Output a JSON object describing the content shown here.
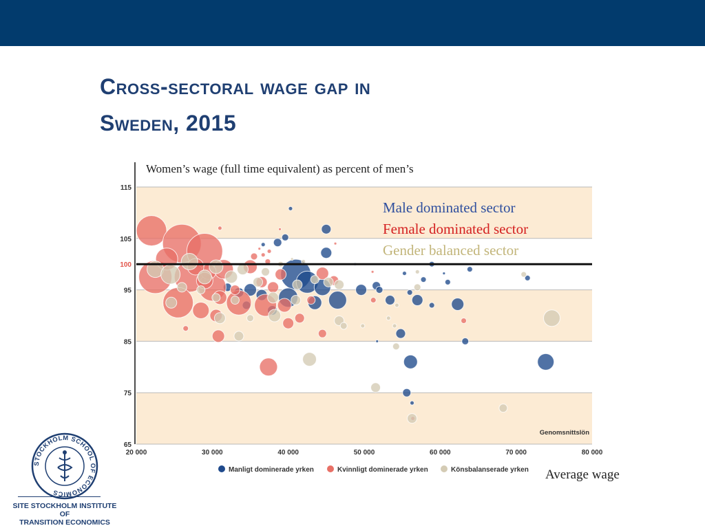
{
  "slide": {
    "title_line1": "Cross-sectoral wage gap in",
    "title_line2": "Sweden, 2015",
    "subtitle": "Women’s wage (full time equivalent) as percent of men’s",
    "legend": [
      {
        "label": "Male dominated sector",
        "color": "#2f4f9e"
      },
      {
        "label": "Female dominated sector",
        "color": "#d42020"
      },
      {
        "label": "Gender balanced sector",
        "color": "#c2b57a"
      }
    ],
    "x_axis_caption": "Average wage",
    "logo_text": "STOCKHOLM SCHOOL OF ECONOMICS",
    "institute_line1": "SITE STOCKHOLM INSTITUTE OF",
    "institute_line2": "TRANSITION ECONOMICS"
  },
  "chart_data": {
    "type": "scatter",
    "title": "",
    "xlabel": "",
    "ylabel": "",
    "xlim": [
      20000,
      80000
    ],
    "ylim": [
      65,
      115
    ],
    "x_ticks": [
      "20 000",
      "30 000",
      "40 000",
      "50 000",
      "60 000",
      "70 000",
      "80 000"
    ],
    "y_ticks": [
      "115",
      "105",
      "100",
      "95",
      "85",
      "75",
      "65"
    ],
    "y_tick_values": [
      115,
      105,
      100,
      95,
      85,
      75,
      65
    ],
    "reference_line": {
      "y": 100,
      "label": "100"
    },
    "average_label": "Genomsnittslön",
    "bands": [
      [
        65,
        75
      ],
      [
        85,
        95
      ],
      [
        105,
        115
      ]
    ],
    "band_color": "#fcebd4",
    "legend_entries": [
      {
        "label": "Manligt dominerade yrken",
        "color": "#1f4a8c"
      },
      {
        "label": "Kvinnligt dominerade yrken",
        "color": "#e87066"
      },
      {
        "label": "Könsbalanserade yrken",
        "color": "#d4cbb4"
      }
    ],
    "series": [
      {
        "name": "Manligt dominerade yrken",
        "color": "#1f4a8c",
        "points": [
          {
            "x": 40300,
            "y": 110.8,
            "r": 3
          },
          {
            "x": 45000,
            "y": 106.8,
            "r": 7
          },
          {
            "x": 38600,
            "y": 104.2,
            "r": 6
          },
          {
            "x": 39600,
            "y": 105.2,
            "r": 5
          },
          {
            "x": 36700,
            "y": 103.8,
            "r": 3
          },
          {
            "x": 45000,
            "y": 102.2,
            "r": 8
          },
          {
            "x": 48800,
            "y": 100.0,
            "r": 2
          },
          {
            "x": 41000,
            "y": 98.0,
            "r": 22
          },
          {
            "x": 42500,
            "y": 96.5,
            "r": 16
          },
          {
            "x": 44500,
            "y": 95.5,
            "r": 12
          },
          {
            "x": 46500,
            "y": 93.0,
            "r": 13
          },
          {
            "x": 40000,
            "y": 93.5,
            "r": 14
          },
          {
            "x": 43500,
            "y": 92.5,
            "r": 10
          },
          {
            "x": 35000,
            "y": 95.0,
            "r": 9
          },
          {
            "x": 36500,
            "y": 94.0,
            "r": 8
          },
          {
            "x": 33500,
            "y": 94.5,
            "r": 7
          },
          {
            "x": 34500,
            "y": 92.0,
            "r": 6
          },
          {
            "x": 49600,
            "y": 95.0,
            "r": 8
          },
          {
            "x": 51600,
            "y": 95.8,
            "r": 6
          },
          {
            "x": 52000,
            "y": 95.0,
            "r": 5
          },
          {
            "x": 53400,
            "y": 93.0,
            "r": 7
          },
          {
            "x": 56000,
            "y": 94.5,
            "r": 4
          },
          {
            "x": 57000,
            "y": 93.0,
            "r": 8
          },
          {
            "x": 57800,
            "y": 97.0,
            "r": 4
          },
          {
            "x": 58900,
            "y": 92.0,
            "r": 4
          },
          {
            "x": 61000,
            "y": 96.5,
            "r": 4
          },
          {
            "x": 62300,
            "y": 92.2,
            "r": 9
          },
          {
            "x": 60500,
            "y": 98.2,
            "r": 2
          },
          {
            "x": 63900,
            "y": 99.0,
            "r": 4
          },
          {
            "x": 55300,
            "y": 98.2,
            "r": 3
          },
          {
            "x": 58900,
            "y": 100.0,
            "r": 4
          },
          {
            "x": 71500,
            "y": 97.3,
            "r": 4
          },
          {
            "x": 54800,
            "y": 86.5,
            "r": 7
          },
          {
            "x": 56100,
            "y": 81.0,
            "r": 10
          },
          {
            "x": 55600,
            "y": 75.0,
            "r": 6
          },
          {
            "x": 56300,
            "y": 73.0,
            "r": 3
          },
          {
            "x": 63300,
            "y": 85.0,
            "r": 5
          },
          {
            "x": 73900,
            "y": 81.0,
            "r": 12
          },
          {
            "x": 51700,
            "y": 85.0,
            "r": 2
          },
          {
            "x": 37900,
            "y": 91.0,
            "r": 7
          },
          {
            "x": 32000,
            "y": 95.5,
            "r": 6
          },
          {
            "x": 29500,
            "y": 97.0,
            "r": 5
          }
        ]
      },
      {
        "name": "Kvinnligt dominerade yrken",
        "color": "#e87066",
        "points": [
          {
            "x": 22000,
            "y": 106.5,
            "r": 22
          },
          {
            "x": 26000,
            "y": 104.0,
            "r": 28
          },
          {
            "x": 29000,
            "y": 102.5,
            "r": 26
          },
          {
            "x": 22500,
            "y": 97.5,
            "r": 24
          },
          {
            "x": 27000,
            "y": 97.5,
            "r": 22
          },
          {
            "x": 25500,
            "y": 92.5,
            "r": 22
          },
          {
            "x": 30000,
            "y": 95.5,
            "r": 20
          },
          {
            "x": 33500,
            "y": 92.5,
            "r": 18
          },
          {
            "x": 37000,
            "y": 92.0,
            "r": 16
          },
          {
            "x": 24000,
            "y": 101.0,
            "r": 16
          },
          {
            "x": 31500,
            "y": 99.0,
            "r": 14
          },
          {
            "x": 28500,
            "y": 91.0,
            "r": 12
          },
          {
            "x": 35000,
            "y": 99.5,
            "r": 10
          },
          {
            "x": 31000,
            "y": 93.5,
            "r": 10
          },
          {
            "x": 29500,
            "y": 98.5,
            "r": 11
          },
          {
            "x": 27800,
            "y": 99.5,
            "r": 12
          },
          {
            "x": 30500,
            "y": 90.0,
            "r": 9
          },
          {
            "x": 39500,
            "y": 92.0,
            "r": 10
          },
          {
            "x": 39000,
            "y": 98.0,
            "r": 8
          },
          {
            "x": 36500,
            "y": 96.5,
            "r": 8
          },
          {
            "x": 38000,
            "y": 95.5,
            "r": 8
          },
          {
            "x": 37400,
            "y": 80.0,
            "r": 13
          },
          {
            "x": 30800,
            "y": 86.0,
            "r": 9
          },
          {
            "x": 44500,
            "y": 98.2,
            "r": 9
          },
          {
            "x": 46000,
            "y": 96.8,
            "r": 7
          },
          {
            "x": 43000,
            "y": 93.0,
            "r": 6
          },
          {
            "x": 44500,
            "y": 86.5,
            "r": 6
          },
          {
            "x": 41500,
            "y": 89.5,
            "r": 7
          },
          {
            "x": 40000,
            "y": 88.5,
            "r": 8
          },
          {
            "x": 35500,
            "y": 101.5,
            "r": 5
          },
          {
            "x": 37300,
            "y": 100.5,
            "r": 4
          },
          {
            "x": 36700,
            "y": 101.8,
            "r": 3
          },
          {
            "x": 37500,
            "y": 102.5,
            "r": 3
          },
          {
            "x": 33000,
            "y": 95.0,
            "r": 7
          },
          {
            "x": 29000,
            "y": 96.8,
            "r": 12
          },
          {
            "x": 26500,
            "y": 87.5,
            "r": 4
          },
          {
            "x": 31000,
            "y": 107.0,
            "r": 3
          },
          {
            "x": 36200,
            "y": 103.0,
            "r": 2
          },
          {
            "x": 38900,
            "y": 106.8,
            "r": 2
          },
          {
            "x": 46200,
            "y": 104.0,
            "r": 2
          },
          {
            "x": 51100,
            "y": 98.5,
            "r": 2
          },
          {
            "x": 51200,
            "y": 93.0,
            "r": 4
          },
          {
            "x": 63100,
            "y": 89.0,
            "r": 4
          },
          {
            "x": 56400,
            "y": 70.0,
            "r": 3
          }
        ]
      },
      {
        "name": "Könsbalanserade yrken",
        "color": "#d4cbb4",
        "points": [
          {
            "x": 22500,
            "y": 99.0,
            "r": 12
          },
          {
            "x": 24500,
            "y": 98.0,
            "r": 14
          },
          {
            "x": 27000,
            "y": 100.5,
            "r": 12
          },
          {
            "x": 29000,
            "y": 97.5,
            "r": 10
          },
          {
            "x": 30500,
            "y": 99.5,
            "r": 10
          },
          {
            "x": 32500,
            "y": 97.5,
            "r": 9
          },
          {
            "x": 34000,
            "y": 99.0,
            "r": 8
          },
          {
            "x": 36000,
            "y": 96.5,
            "r": 7
          },
          {
            "x": 37000,
            "y": 98.5,
            "r": 6
          },
          {
            "x": 38000,
            "y": 93.5,
            "r": 8
          },
          {
            "x": 38200,
            "y": 90.0,
            "r": 9
          },
          {
            "x": 41000,
            "y": 93.0,
            "r": 7
          },
          {
            "x": 41200,
            "y": 96.0,
            "r": 7
          },
          {
            "x": 43500,
            "y": 97.0,
            "r": 6
          },
          {
            "x": 45300,
            "y": 96.5,
            "r": 7
          },
          {
            "x": 46700,
            "y": 96.0,
            "r": 7
          },
          {
            "x": 46700,
            "y": 89.0,
            "r": 7
          },
          {
            "x": 47300,
            "y": 88.0,
            "r": 5
          },
          {
            "x": 42800,
            "y": 81.5,
            "r": 10
          },
          {
            "x": 33500,
            "y": 86.0,
            "r": 7
          },
          {
            "x": 31000,
            "y": 89.5,
            "r": 8
          },
          {
            "x": 26000,
            "y": 95.5,
            "r": 7
          },
          {
            "x": 28500,
            "y": 95.0,
            "r": 6
          },
          {
            "x": 30500,
            "y": 93.5,
            "r": 6
          },
          {
            "x": 33000,
            "y": 93.0,
            "r": 6
          },
          {
            "x": 35000,
            "y": 89.5,
            "r": 5
          },
          {
            "x": 24600,
            "y": 92.5,
            "r": 8
          },
          {
            "x": 39000,
            "y": 100.0,
            "r": 4
          },
          {
            "x": 42000,
            "y": 100.5,
            "r": 3
          },
          {
            "x": 40500,
            "y": 101.0,
            "r": 2
          },
          {
            "x": 51500,
            "y": 76.0,
            "r": 7
          },
          {
            "x": 53200,
            "y": 89.5,
            "r": 3
          },
          {
            "x": 54000,
            "y": 88.0,
            "r": 3
          },
          {
            "x": 54200,
            "y": 84.0,
            "r": 5
          },
          {
            "x": 57000,
            "y": 95.5,
            "r": 5
          },
          {
            "x": 57000,
            "y": 98.5,
            "r": 3
          },
          {
            "x": 56300,
            "y": 70.0,
            "r": 7
          },
          {
            "x": 68300,
            "y": 72.0,
            "r": 6
          },
          {
            "x": 74700,
            "y": 89.5,
            "r": 12
          },
          {
            "x": 71000,
            "y": 98.0,
            "r": 4
          },
          {
            "x": 49800,
            "y": 88.0,
            "r": 3
          },
          {
            "x": 54300,
            "y": 92.0,
            "r": 3
          }
        ]
      }
    ]
  }
}
